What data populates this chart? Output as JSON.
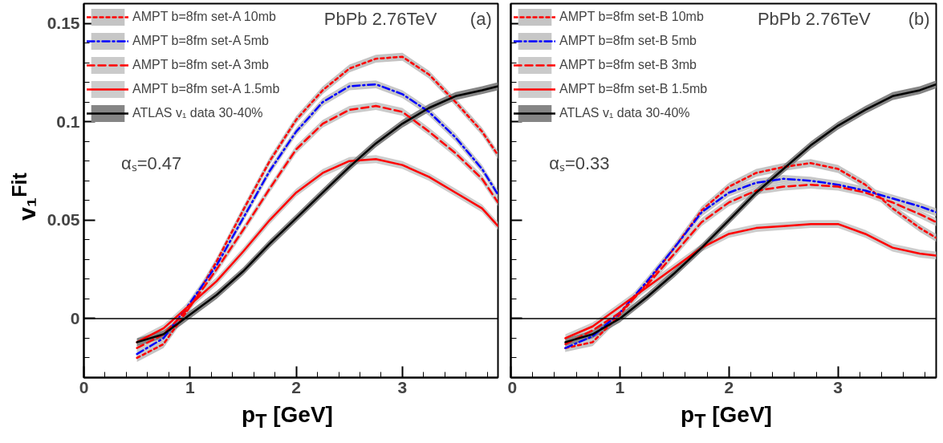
{
  "chart_data": [
    {
      "type": "line",
      "xlabel": "p$_{T}$ [GeV]",
      "ylabel": "v₁$^{Fit}$",
      "xlim": [
        0,
        3.9
      ],
      "ylim": [
        -0.03,
        0.16
      ],
      "xticks": [
        0,
        1,
        2,
        3
      ],
      "yticks": [
        0,
        0.05,
        0.1,
        0.15
      ],
      "legend": "top left",
      "x": [
        0.5,
        0.75,
        1.0,
        1.25,
        1.5,
        1.75,
        2.0,
        2.25,
        2.5,
        2.75,
        3.0,
        3.25,
        3.5,
        3.75,
        3.9
      ],
      "annotations": [
        "PbPb 2.76TeV",
        "(a)",
        "αₛ=0.47"
      ],
      "ref_lines": [
        {
          "axis": "y",
          "value": 0,
          "color": "#000000"
        }
      ],
      "series": [
        {
          "name": "AMPT b=8fm set-A 10mb",
          "color": "#ff0000",
          "line_style": "dotted",
          "values": [
            -0.02,
            -0.013,
            0.006,
            0.029,
            0.055,
            0.08,
            0.101,
            0.116,
            0.127,
            0.132,
            0.133,
            0.124,
            0.11,
            0.095,
            0.083
          ],
          "lower": [
            -0.022,
            -0.015,
            0.004,
            0.027,
            0.053,
            0.078,
            0.099,
            0.114,
            0.125,
            0.13,
            0.131,
            0.122,
            0.108,
            0.093,
            0.081
          ],
          "upper": [
            -0.018,
            -0.011,
            0.008,
            0.031,
            0.057,
            0.082,
            0.103,
            0.118,
            0.129,
            0.134,
            0.135,
            0.126,
            0.112,
            0.097,
            0.085
          ]
        },
        {
          "name": "AMPT b=8fm set-A 5mb",
          "color": "#0000ff",
          "line_style": "dashdot",
          "values": [
            -0.018,
            -0.01,
            0.008,
            0.027,
            0.051,
            0.075,
            0.095,
            0.11,
            0.118,
            0.119,
            0.114,
            0.105,
            0.092,
            0.076,
            0.063
          ],
          "lower": [
            -0.02,
            -0.012,
            0.006,
            0.025,
            0.049,
            0.073,
            0.093,
            0.108,
            0.116,
            0.117,
            0.112,
            0.103,
            0.09,
            0.074,
            0.061
          ],
          "upper": [
            -0.016,
            -0.008,
            0.01,
            0.029,
            0.053,
            0.077,
            0.097,
            0.112,
            0.12,
            0.121,
            0.116,
            0.107,
            0.094,
            0.078,
            0.065
          ]
        },
        {
          "name": "AMPT b=8fm set-A 3mb",
          "color": "#ff0000",
          "line_style": "dashed",
          "values": [
            -0.015,
            -0.008,
            0.006,
            0.025,
            0.045,
            0.066,
            0.086,
            0.099,
            0.106,
            0.108,
            0.105,
            0.095,
            0.084,
            0.071,
            0.059
          ],
          "lower": [
            -0.017,
            -0.01,
            0.004,
            0.023,
            0.043,
            0.064,
            0.084,
            0.097,
            0.104,
            0.106,
            0.103,
            0.093,
            0.082,
            0.069,
            0.057
          ],
          "upper": [
            -0.013,
            -0.006,
            0.008,
            0.027,
            0.047,
            0.068,
            0.088,
            0.101,
            0.108,
            0.11,
            0.107,
            0.097,
            0.086,
            0.073,
            0.061
          ]
        },
        {
          "name": "AMPT b=8fm set-A 1.5mb",
          "color": "#ff0000",
          "line_style": "solid",
          "values": [
            -0.012,
            -0.005,
            0.007,
            0.019,
            0.034,
            0.05,
            0.064,
            0.074,
            0.08,
            0.081,
            0.078,
            0.072,
            0.064,
            0.056,
            0.047
          ],
          "lower": [
            -0.014,
            -0.007,
            0.005,
            0.017,
            0.032,
            0.048,
            0.062,
            0.072,
            0.078,
            0.079,
            0.076,
            0.07,
            0.062,
            0.054,
            0.045
          ],
          "upper": [
            -0.01,
            -0.003,
            0.009,
            0.021,
            0.036,
            0.052,
            0.066,
            0.076,
            0.082,
            0.083,
            0.08,
            0.074,
            0.066,
            0.058,
            0.049
          ]
        },
        {
          "name": "ATLAS v₁ data 30-40%",
          "color": "#000000",
          "line_style": "solid",
          "values": [
            -0.012,
            -0.008,
            0.002,
            0.012,
            0.024,
            0.038,
            0.051,
            0.064,
            0.077,
            0.089,
            0.099,
            0.107,
            0.113,
            0.116,
            0.118
          ],
          "lower": [
            -0.014,
            -0.01,
            0.0,
            0.01,
            0.022,
            0.036,
            0.049,
            0.062,
            0.075,
            0.087,
            0.097,
            0.105,
            0.111,
            0.114,
            0.116
          ],
          "upper": [
            -0.01,
            -0.006,
            0.004,
            0.014,
            0.026,
            0.04,
            0.053,
            0.066,
            0.079,
            0.091,
            0.101,
            0.109,
            0.115,
            0.118,
            0.12
          ]
        }
      ]
    },
    {
      "type": "line",
      "xlabel": "p$_{T}$ [GeV]",
      "xlim": [
        0,
        3.9
      ],
      "ylim": [
        -0.03,
        0.16
      ],
      "xticks": [
        0,
        1,
        2,
        3
      ],
      "yticks": [
        0,
        0.05,
        0.1,
        0.15
      ],
      "legend": "top left",
      "tick_labels": "x",
      "x": [
        0.5,
        0.75,
        1.0,
        1.25,
        1.5,
        1.75,
        2.0,
        2.25,
        2.5,
        2.75,
        3.0,
        3.25,
        3.5,
        3.75,
        3.9
      ],
      "annotations": [
        "PbPb 2.76TeV",
        "(b)",
        "αₛ=0.33"
      ],
      "ref_lines": [
        {
          "axis": "y",
          "value": 0,
          "color": "#000000"
        }
      ],
      "series": [
        {
          "name": "AMPT b=8fm set-B 10mb",
          "color": "#ff0000",
          "line_style": "dotted",
          "values": [
            -0.015,
            -0.012,
            0.002,
            0.018,
            0.036,
            0.055,
            0.067,
            0.074,
            0.077,
            0.079,
            0.076,
            0.068,
            0.056,
            0.046,
            0.041
          ],
          "lower": [
            -0.017,
            -0.014,
            0.0,
            0.016,
            0.034,
            0.053,
            0.065,
            0.072,
            0.075,
            0.077,
            0.074,
            0.066,
            0.054,
            0.044,
            0.039
          ],
          "upper": [
            -0.013,
            -0.01,
            0.004,
            0.02,
            0.038,
            0.057,
            0.069,
            0.076,
            0.079,
            0.081,
            0.078,
            0.07,
            0.058,
            0.048,
            0.043
          ]
        },
        {
          "name": "AMPT b=8fm set-B 5mb",
          "color": "#0000ff",
          "line_style": "dashdot",
          "values": [
            -0.015,
            -0.009,
            0.003,
            0.019,
            0.036,
            0.054,
            0.064,
            0.069,
            0.071,
            0.07,
            0.068,
            0.065,
            0.061,
            0.057,
            0.054
          ],
          "lower": [
            -0.017,
            -0.011,
            0.001,
            0.017,
            0.034,
            0.052,
            0.062,
            0.067,
            0.069,
            0.068,
            0.066,
            0.063,
            0.059,
            0.055,
            0.052
          ],
          "upper": [
            -0.013,
            -0.007,
            0.005,
            0.021,
            0.038,
            0.056,
            0.066,
            0.071,
            0.073,
            0.072,
            0.07,
            0.067,
            0.063,
            0.059,
            0.056
          ]
        },
        {
          "name": "AMPT b=8fm set-B 3mb",
          "color": "#ff0000",
          "line_style": "dashed",
          "values": [
            -0.013,
            -0.006,
            0.003,
            0.017,
            0.033,
            0.049,
            0.059,
            0.065,
            0.067,
            0.068,
            0.067,
            0.064,
            0.059,
            0.053,
            0.049
          ],
          "lower": [
            -0.015,
            -0.008,
            0.001,
            0.015,
            0.031,
            0.047,
            0.057,
            0.063,
            0.065,
            0.066,
            0.065,
            0.062,
            0.057,
            0.051,
            0.047
          ],
          "upper": [
            -0.011,
            -0.004,
            0.005,
            0.019,
            0.035,
            0.051,
            0.061,
            0.067,
            0.069,
            0.07,
            0.069,
            0.066,
            0.061,
            0.055,
            0.051
          ]
        },
        {
          "name": "AMPT b=8fm set-B 1.5mb",
          "color": "#ff0000",
          "line_style": "solid",
          "values": [
            -0.01,
            -0.004,
            0.006,
            0.016,
            0.026,
            0.036,
            0.043,
            0.046,
            0.047,
            0.048,
            0.048,
            0.043,
            0.036,
            0.033,
            0.032
          ],
          "lower": [
            -0.012,
            -0.006,
            0.004,
            0.014,
            0.024,
            0.034,
            0.041,
            0.044,
            0.045,
            0.046,
            0.046,
            0.041,
            0.034,
            0.031,
            0.03
          ],
          "upper": [
            -0.008,
            -0.002,
            0.008,
            0.018,
            0.028,
            0.038,
            0.045,
            0.048,
            0.049,
            0.05,
            0.05,
            0.045,
            0.038,
            0.035,
            0.034
          ]
        },
        {
          "name": "ATLAS v₁ data 30-40%",
          "color": "#000000",
          "line_style": "solid",
          "values": [
            -0.012,
            -0.008,
            0.0,
            0.011,
            0.023,
            0.036,
            0.05,
            0.064,
            0.076,
            0.088,
            0.098,
            0.106,
            0.113,
            0.116,
            0.119
          ],
          "lower": [
            -0.014,
            -0.01,
            -0.002,
            0.009,
            0.021,
            0.034,
            0.048,
            0.062,
            0.074,
            0.086,
            0.096,
            0.104,
            0.111,
            0.114,
            0.117
          ],
          "upper": [
            -0.01,
            -0.006,
            0.002,
            0.013,
            0.025,
            0.038,
            0.052,
            0.066,
            0.078,
            0.09,
            0.1,
            0.108,
            0.115,
            0.118,
            0.121
          ]
        }
      ]
    }
  ]
}
